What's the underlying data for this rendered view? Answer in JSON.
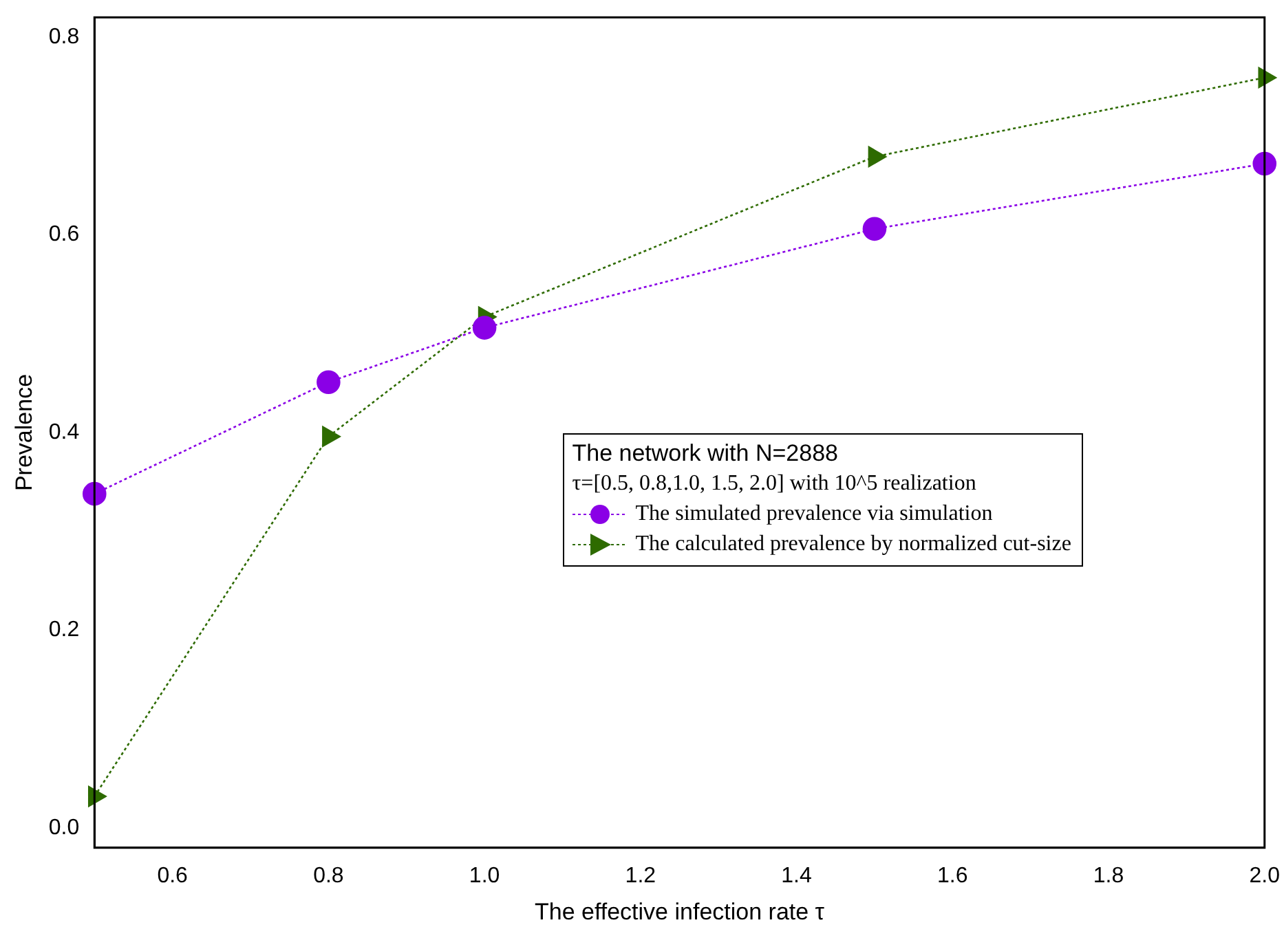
{
  "chart_data": {
    "type": "line",
    "xlabel": "The effective infection rate τ",
    "ylabel": "Prevalence",
    "legend_title": "The network with N=2888\nτ=[0.5, 0.8,1.0, 1.5, 2.0]  with 10^5 realization",
    "x": [
      0.5,
      0.8,
      1.0,
      1.5,
      2.0
    ],
    "series": [
      {
        "name": "The simulated prevalence via simulation",
        "color": "#8a00e6",
        "marker": "circle",
        "line_style": "dotted",
        "values": [
          0.338,
          0.451,
          0.506,
          0.606,
          0.672
        ]
      },
      {
        "name": "The calculated prevalence by normalized cut-size",
        "color": "#2e6b00",
        "marker": "triangle",
        "line_style": "dotted",
        "values": [
          0.032,
          0.396,
          0.517,
          0.679,
          0.759
        ]
      }
    ],
    "xlim": [
      0.5,
      2.0
    ],
    "xticks": [
      0.6,
      0.8,
      {
        "value": 1.0,
        "label": "1.0"
      },
      1.2,
      1.4,
      1.6,
      1.8,
      {
        "value": 2.0,
        "label": "2.0"
      }
    ],
    "ylim": [
      -0.02,
      0.82
    ],
    "yticks": [
      {
        "value": 0,
        "label": "0.0"
      },
      0.2,
      0.4,
      0.6,
      0.8
    ],
    "grid": false,
    "legend": "right"
  }
}
